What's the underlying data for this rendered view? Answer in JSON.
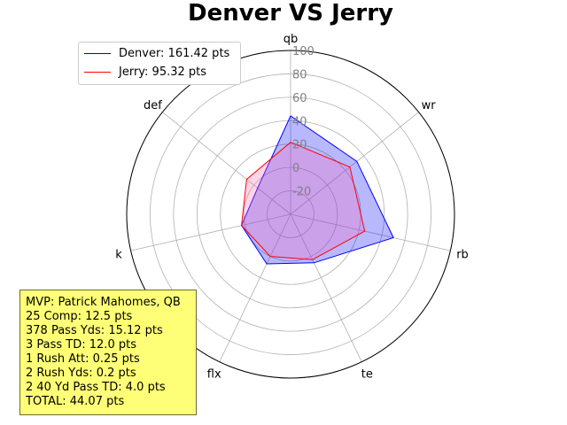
{
  "chart_data": {
    "type": "radar",
    "title": "Denver VS Jerry",
    "axes": [
      "qb",
      "wr",
      "rb",
      "te",
      "flx",
      "k",
      "def"
    ],
    "r_ticks": [
      "-20",
      "0",
      "20",
      "40",
      "60",
      "80",
      "100"
    ],
    "r_range": [
      -40,
      100
    ],
    "series": [
      {
        "name": "Denver: 161.42 pts",
        "color": "#0000ff",
        "fill": "#0000ff",
        "values": [
          44.07,
          32.4,
          50.1,
          6.0,
          7.0,
          3.0,
          -4.0
        ]
      },
      {
        "name": "Jerry: 95.32 pts",
        "color": "#ff0000",
        "fill": "#ff69b4",
        "values": [
          21.5,
          24.8,
          25.0,
          3.0,
          0.0,
          3.0,
          8.0
        ]
      }
    ],
    "legend_position": "top-left",
    "grid": true
  },
  "mvp": {
    "lines": [
      "MVP: Patrick Mahomes, QB",
      "25 Comp: 12.5 pts",
      "378 Pass Yds: 15.12 pts",
      "3 Pass TD: 12.0 pts",
      "1 Rush Att: 0.25 pts",
      "2 Rush Yds: 0.2 pts",
      "2 40 Yd Pass TD: 4.0 pts",
      "TOTAL: 44.07 pts"
    ]
  }
}
